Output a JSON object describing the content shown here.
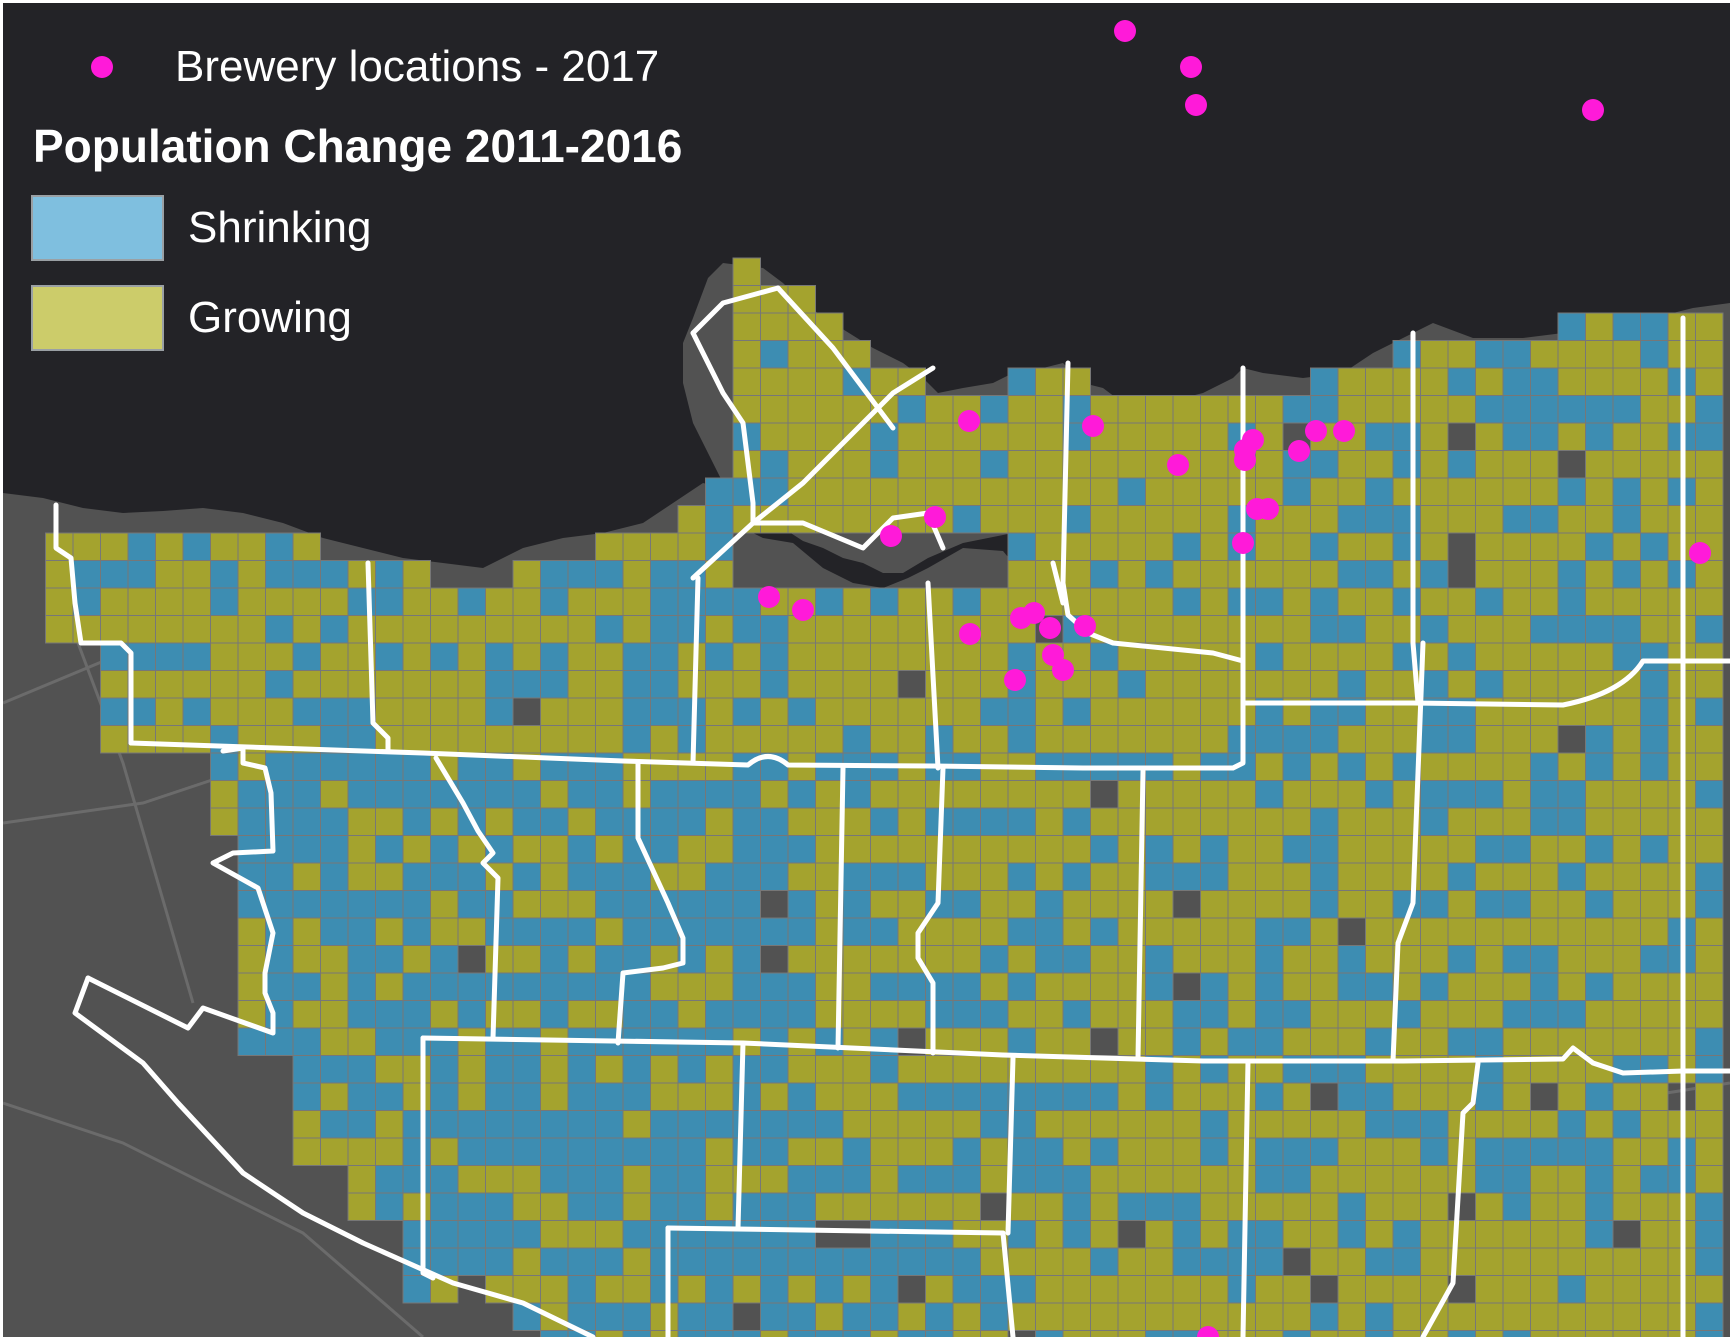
{
  "legend": {
    "brewery_label": "Brewery locations - 2017",
    "title": "Population Change 2011-2016",
    "shrinking_label": "Shrinking",
    "growing_label": "Growing"
  },
  "colors": {
    "background_land": "#525252",
    "water": "#232327",
    "minor_roads": "#6b6b6b",
    "shrinking": "#3d8db2",
    "shrinking_legend": "#7fbfdf",
    "growing": "#a4a32e",
    "growing_legend": "#cccc6a",
    "grid_line": "#777777",
    "arterial_roads": "#ffffff",
    "brewery": "#ff1ad9"
  },
  "map": {
    "layers": [
      "brewery-locations",
      "population-change-grid",
      "arterial-roads",
      "water",
      "basemap"
    ]
  }
}
